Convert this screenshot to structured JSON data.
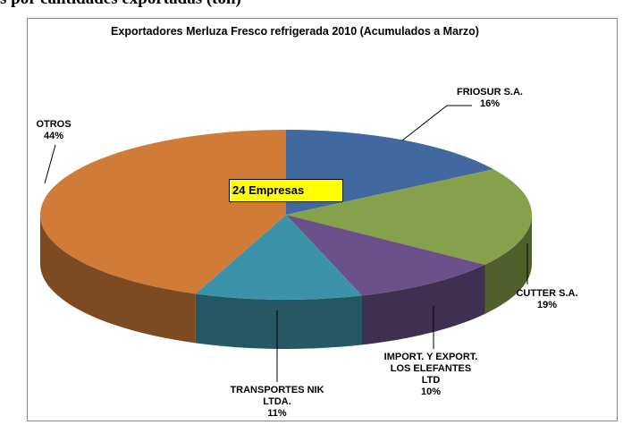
{
  "heading": "s por cantidades exportadas (ton)",
  "chart_data": {
    "type": "pie",
    "title": "Exportadores Merluza Fresco refrigerada 2010 (Acumulados a Marzo)",
    "annotation": "24 Empresas",
    "categories": [
      "FRIOSUR S.A.",
      "CUTTER S.A.",
      "IMPORT. Y EXPORT.\nLOS ELEFANTES\nLTD",
      "TRANSPORTES NIK\nLTDA.",
      "OTROS"
    ],
    "values": [
      16,
      19,
      10,
      11,
      44
    ],
    "value_labels": [
      "16%",
      "19%",
      "10%",
      "11%",
      "44%"
    ],
    "colors": [
      "#41689f",
      "#86a04b",
      "#6a5189",
      "#3c93a9",
      "#d07c38"
    ]
  }
}
